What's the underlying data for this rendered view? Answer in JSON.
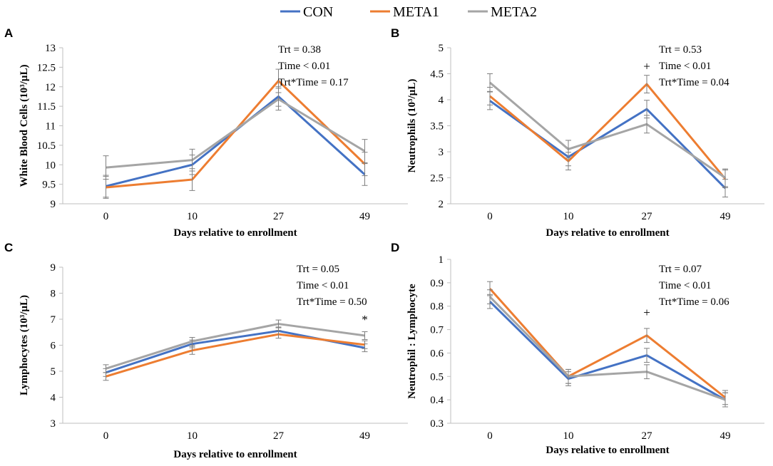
{
  "legend": [
    {
      "name": "CON",
      "color": "#4472C4"
    },
    {
      "name": "META1",
      "color": "#ED7D31"
    },
    {
      "name": "META2",
      "color": "#A5A5A5"
    }
  ],
  "chart_data": [
    {
      "panel": "A",
      "type": "line",
      "categories": [
        "0",
        "10",
        "27",
        "49"
      ],
      "ylabel": "White Blood Cells (10³/µL)",
      "xlabel": "Days relative to enrollment",
      "ylim": [
        9,
        13
      ],
      "yticks": [
        "9",
        "9.5",
        "10",
        "10.5",
        "11",
        "11.5",
        "12",
        "12.5",
        "13"
      ],
      "stats": [
        "Trt = 0.38",
        "Time < 0.01",
        "Trt*Time = 0.17"
      ],
      "series": [
        {
          "name": "CON",
          "values": [
            9.45,
            10.0,
            11.75,
            9.75
          ],
          "errors": [
            0.28,
            0.25,
            0.25,
            0.28
          ]
        },
        {
          "name": "META1",
          "values": [
            9.42,
            9.62,
            12.15,
            10.02
          ],
          "errors": [
            0.28,
            0.28,
            0.3,
            0.3
          ]
        },
        {
          "name": "META2",
          "values": [
            9.93,
            10.12,
            11.68,
            10.35
          ],
          "errors": [
            0.3,
            0.28,
            0.28,
            0.3
          ]
        }
      ],
      "annotations": []
    },
    {
      "panel": "B",
      "type": "line",
      "categories": [
        "0",
        "10",
        "27",
        "49"
      ],
      "ylabel": "Neutrophils (10³/µL)",
      "xlabel": "Days relative to enrollment",
      "ylim": [
        2,
        5
      ],
      "yticks": [
        "2",
        "2.5",
        "3",
        "3.5",
        "4",
        "4.5",
        "5"
      ],
      "stats": [
        "Trt = 0.53",
        "Time < 0.01",
        "Trt*Time = 0.04"
      ],
      "series": [
        {
          "name": "CON",
          "values": [
            3.98,
            2.9,
            3.82,
            2.3
          ],
          "errors": [
            0.17,
            0.17,
            0.17,
            0.17
          ]
        },
        {
          "name": "META1",
          "values": [
            4.07,
            2.82,
            4.3,
            2.48
          ],
          "errors": [
            0.17,
            0.17,
            0.17,
            0.17
          ]
        },
        {
          "name": "META2",
          "values": [
            4.33,
            3.05,
            3.53,
            2.5
          ],
          "errors": [
            0.17,
            0.17,
            0.17,
            0.17
          ]
        }
      ],
      "annotations": [
        {
          "category": "27",
          "y": 4.65,
          "text": "+"
        }
      ]
    },
    {
      "panel": "C",
      "type": "line",
      "categories": [
        "0",
        "10",
        "27",
        "49"
      ],
      "ylabel": "Lymphocytes (10³/µL)",
      "xlabel": "Days relative to enrollment",
      "ylim": [
        3,
        9
      ],
      "yticks": [
        "3",
        "4",
        "5",
        "6",
        "7",
        "8",
        "9"
      ],
      "stats": [
        "Trt = 0.05",
        "Time < 0.01",
        "Trt*Time = 0.50"
      ],
      "series": [
        {
          "name": "CON",
          "values": [
            4.95,
            6.05,
            6.55,
            5.9
          ],
          "errors": [
            0.15,
            0.15,
            0.15,
            0.15
          ]
        },
        {
          "name": "META1",
          "values": [
            4.8,
            5.8,
            6.42,
            6.02
          ],
          "errors": [
            0.15,
            0.15,
            0.15,
            0.15
          ]
        },
        {
          "name": "META2",
          "values": [
            5.1,
            6.15,
            6.82,
            6.37
          ],
          "errors": [
            0.15,
            0.15,
            0.15,
            0.15
          ]
        }
      ],
      "annotations": [
        {
          "category": "49",
          "y": 7.0,
          "text": "*"
        }
      ]
    },
    {
      "panel": "D",
      "type": "line",
      "categories": [
        "0",
        "10",
        "27",
        "49"
      ],
      "ylabel": "Neutrophil : Lymphocyte",
      "xlabel": "Days relative to enrollment",
      "ylim": [
        0.3,
        1
      ],
      "yticks": [
        "0.3",
        "0.4",
        "0.5",
        "0.6",
        "0.7",
        "0.8",
        "0.9",
        "1"
      ],
      "stats": [
        "Trt = 0.07",
        "Time < 0.01",
        "Trt*Time = 0.06"
      ],
      "series": [
        {
          "name": "CON",
          "values": [
            0.82,
            0.49,
            0.59,
            0.4
          ],
          "errors": [
            0.03,
            0.03,
            0.03,
            0.03
          ]
        },
        {
          "name": "META1",
          "values": [
            0.875,
            0.5,
            0.675,
            0.41
          ],
          "errors": [
            0.03,
            0.03,
            0.03,
            0.03
          ]
        },
        {
          "name": "META2",
          "values": [
            0.84,
            0.5,
            0.52,
            0.4
          ],
          "errors": [
            0.03,
            0.03,
            0.03,
            0.03
          ]
        }
      ],
      "annotations": [
        {
          "category": "27",
          "y": 0.775,
          "text": "+"
        }
      ]
    }
  ]
}
